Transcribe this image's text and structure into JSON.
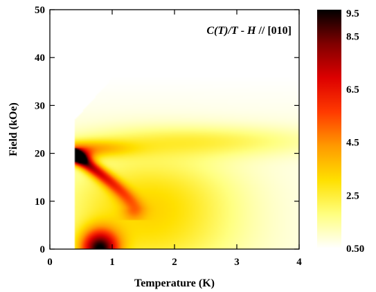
{
  "chart_data": {
    "type": "heatmap",
    "title": "",
    "annotation": {
      "parts": [
        "C(",
        "T",
        ")/",
        "T",
        " - ",
        "H",
        " // [010]"
      ]
    },
    "xlabel": "Temperature (K)",
    "ylabel": "Field (kOe)",
    "xlim": [
      0,
      4
    ],
    "ylim": [
      0,
      50
    ],
    "x_ticks": [
      0,
      1,
      2,
      3,
      4
    ],
    "y_ticks": [
      0,
      10,
      20,
      30,
      40,
      50
    ],
    "x_tick_labels": [
      "0",
      "1",
      "2",
      "3",
      "4"
    ],
    "y_tick_labels": [
      "0",
      "10",
      "20",
      "30",
      "40",
      "50"
    ],
    "data_x_min": 0.4,
    "data_left_edge_top_field": 27,
    "features": [
      {
        "name": "low-field hotspot",
        "temperature": 0.8,
        "field": 0.5,
        "value": 9.0
      },
      {
        "name": "phase line near 19 kOe",
        "temperature": 0.45,
        "field": 19,
        "value": 8.0
      },
      {
        "name": "phase line",
        "temperature": 0.9,
        "field": 15,
        "value": 6.0
      },
      {
        "name": "phase line",
        "temperature": 1.3,
        "field": 10,
        "value": 4.5
      },
      {
        "name": "broad hump",
        "temperature": 1.8,
        "field": 10,
        "value": 3.2
      },
      {
        "name": "high-field ridge",
        "temperature": 2.5,
        "field": 23,
        "value": 2.4
      }
    ],
    "colorbar": {
      "range": [
        0.5,
        9.5
      ],
      "tick_values": [
        9.5,
        8.5,
        6.5,
        4.5,
        2.5,
        0.5
      ],
      "tick_labels": [
        "9.5",
        "8.5",
        "6.5",
        "4.5",
        "2.5",
        "0.50"
      ],
      "colors": [
        "#ffffff",
        "#ffff80",
        "#ffe000",
        "#ff9a00",
        "#ff3a00",
        "#dd0000",
        "#800000",
        "#000000"
      ]
    }
  }
}
